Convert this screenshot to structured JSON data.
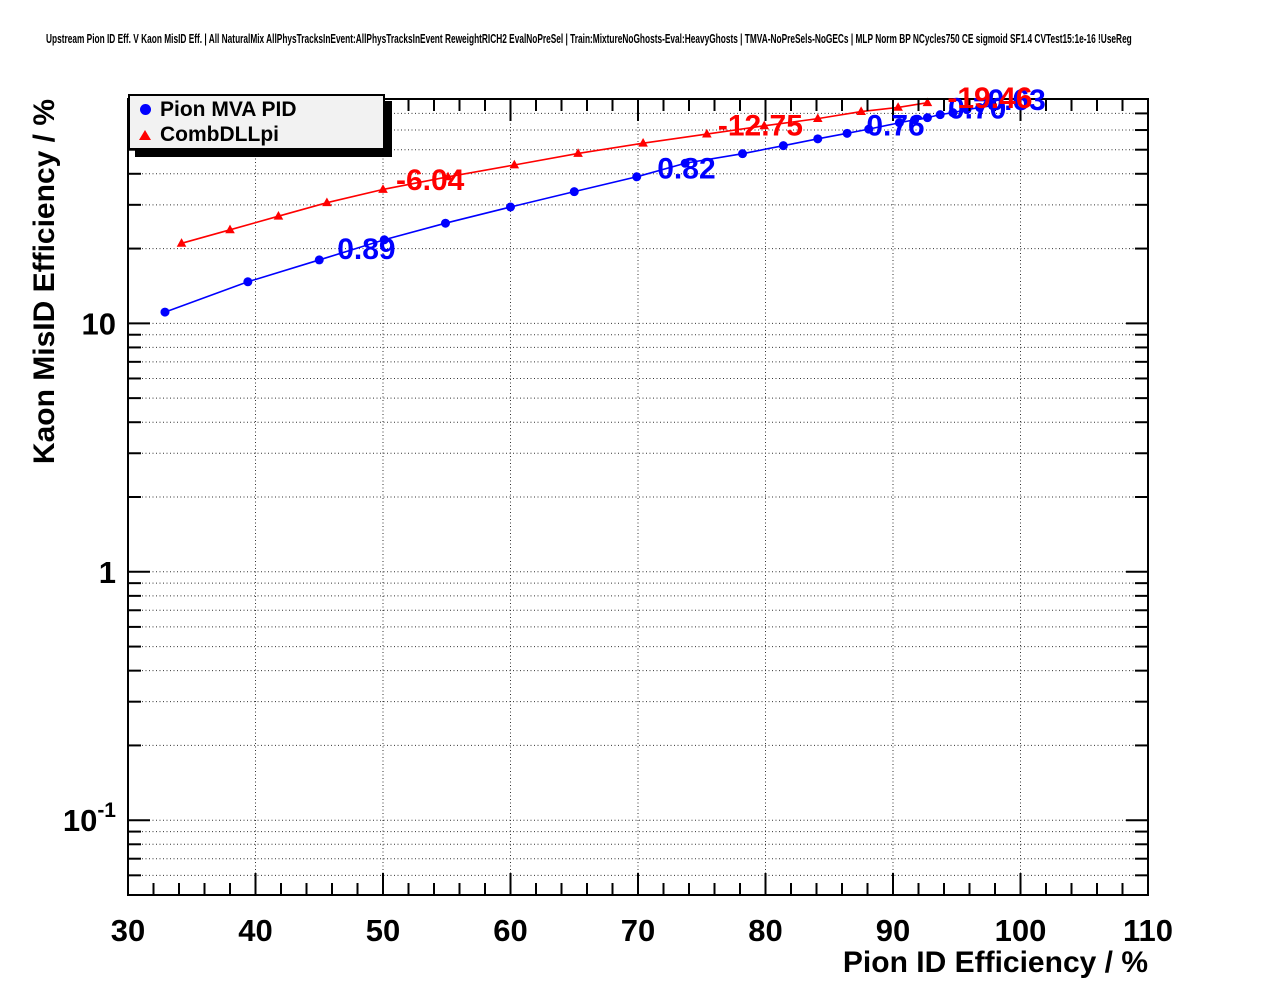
{
  "header": {
    "title": "Upstream Pion ID Eff. V Kaon MisID Eff. | All NaturalMix AllPhysTracksInEvent:AllPhysTracksInEvent ReweightRICH2 EvalNoPreSel | Train:MixtureNoGhosts-Eval:HeavyGhosts | TMVA-NoPreSels-NoGECs | MLP Norm BP NCycles750 CE sigmoid SF1.4 CVTest15:1e-16 !UseReg"
  },
  "chart_data": {
    "type": "line",
    "title": "Upstream Pion ID Eff. V Kaon MisID Eff.",
    "xlabel": "Pion ID Efficiency / %",
    "ylabel": "Kaon MisID Efficiency / %",
    "x_range": [
      30,
      110
    ],
    "y_range": [
      0.05,
      80
    ],
    "y_scale": "log",
    "grid": true,
    "x_major_ticks": [
      30,
      40,
      50,
      60,
      70,
      80,
      90,
      100,
      110
    ],
    "x_minor_step": 2,
    "y_major_ticks": [
      {
        "value": 10,
        "text": "10",
        "sup": null
      },
      {
        "value": 1,
        "text": "1",
        "sup": null
      },
      {
        "value": 0.1,
        "text": "10",
        "sup": "-1"
      }
    ],
    "colors": {
      "series1": "#0000ff",
      "series2": "#ff0000",
      "grid": "#333333",
      "frame": "#000000"
    },
    "legend": {
      "position": "top-left",
      "entries": [
        {
          "label": "Pion MVA PID",
          "marker": "circle",
          "color": "#0000ff"
        },
        {
          "label": "CombDLLpi",
          "marker": "triangle",
          "color": "#ff0000"
        }
      ]
    },
    "series": [
      {
        "name": "Pion MVA PID",
        "marker": "circle",
        "color": "#0000ff",
        "points": [
          [
            32.9,
            11.1
          ],
          [
            39.4,
            14.7
          ],
          [
            45.0,
            18.0
          ],
          [
            50.1,
            21.7
          ],
          [
            54.9,
            25.3
          ],
          [
            60.0,
            29.4
          ],
          [
            65.0,
            33.9
          ],
          [
            69.9,
            38.9
          ],
          [
            73.7,
            44.1
          ],
          [
            78.2,
            48.2
          ],
          [
            81.4,
            51.9
          ],
          [
            84.1,
            55.3
          ],
          [
            86.4,
            58.2
          ],
          [
            88.1,
            60.5
          ],
          [
            90.5,
            64.2
          ],
          [
            91.7,
            66.0
          ],
          [
            92.7,
            67.3
          ],
          [
            93.7,
            69.2
          ],
          [
            94.7,
            70.5
          ],
          [
            95.8,
            72.5
          ],
          [
            96.8,
            73.9
          ],
          [
            97.8,
            75.3
          ]
        ],
        "cut_labels": [
          {
            "text": "0.89",
            "x": 48.7,
            "y": 19.9
          },
          {
            "text": "0.82",
            "x": 73.8,
            "y": 42.1
          },
          {
            "text": "0.76",
            "x": 90.2,
            "y": 62.5
          },
          {
            "text": "0.70",
            "x": 96.6,
            "y": 73.1
          },
          {
            "text": "0.63",
            "x": 99.7,
            "y": 79.4
          }
        ]
      },
      {
        "name": "CombDLLpi",
        "marker": "triangle",
        "color": "#ff0000",
        "points": [
          [
            34.2,
            21.0
          ],
          [
            38.0,
            23.8
          ],
          [
            41.8,
            27.0
          ],
          [
            45.6,
            30.6
          ],
          [
            50.0,
            34.6
          ],
          [
            55.1,
            38.9
          ],
          [
            60.3,
            43.4
          ],
          [
            65.3,
            48.3
          ],
          [
            70.4,
            53.1
          ],
          [
            75.4,
            57.8
          ],
          [
            79.9,
            62.4
          ],
          [
            84.1,
            66.7
          ],
          [
            87.5,
            71.2
          ],
          [
            90.4,
            74.0
          ],
          [
            92.7,
            77.3
          ]
        ],
        "cut_labels": [
          {
            "text": "-6.04",
            "x": 53.7,
            "y": 37.7
          },
          {
            "text": "-12.75",
            "x": 79.6,
            "y": 62.5
          },
          {
            "text": "-19.46",
            "x": 97.6,
            "y": 80.9
          }
        ]
      }
    ]
  }
}
